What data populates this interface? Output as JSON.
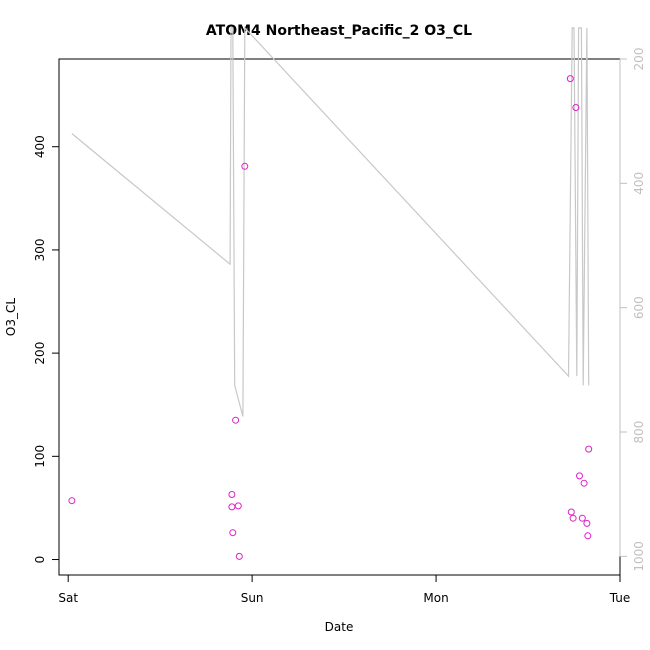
{
  "chart_data": {
    "type": "scatter",
    "title": "ATOM4 Northeast_Pacific_2 O3_CL",
    "xlabel": "Date",
    "ylabel": "O3_CL",
    "x_unit": "days since Sat 00:00",
    "xlim": [
      -0.05,
      3.0
    ],
    "ylim": [
      -15,
      485
    ],
    "x_ticks": [
      {
        "value": 0,
        "label": "Sat"
      },
      {
        "value": 1,
        "label": "Sun"
      },
      {
        "value": 2,
        "label": "Mon"
      },
      {
        "value": 3,
        "label": "Tue"
      }
    ],
    "y_ticks": [
      0,
      100,
      200,
      300,
      400
    ],
    "right_axis": {
      "label": "",
      "reversed": true,
      "lim": [
        200,
        1030
      ],
      "ticks": [
        200,
        400,
        600,
        800,
        1000
      ],
      "color": "#c0c0c0"
    },
    "grid": false,
    "legend": "none",
    "points": {
      "color": "#e020c8",
      "x": [
        0.02,
        0.89,
        0.89,
        0.895,
        0.91,
        0.925,
        0.93,
        0.96,
        2.73,
        2.735,
        2.745,
        2.76,
        2.78,
        2.795,
        2.805,
        2.82,
        2.825,
        2.83
      ],
      "y": [
        57,
        63,
        51,
        26,
        135,
        52,
        3,
        381,
        466,
        46,
        40,
        438,
        81,
        40,
        74,
        35,
        23,
        107
      ]
    },
    "pressure_profile": {
      "color": "#c8c8c8",
      "x": [
        0.02,
        0.88,
        0.885,
        0.895,
        0.905,
        0.95,
        0.96,
        2.72,
        2.74,
        2.75,
        2.765,
        2.775,
        2.79,
        2.8,
        2.82,
        2.83
      ],
      "y": [
        320,
        530,
        150,
        150,
        725,
        775,
        150,
        710,
        150,
        150,
        710,
        150,
        150,
        725,
        150,
        725
      ]
    }
  }
}
